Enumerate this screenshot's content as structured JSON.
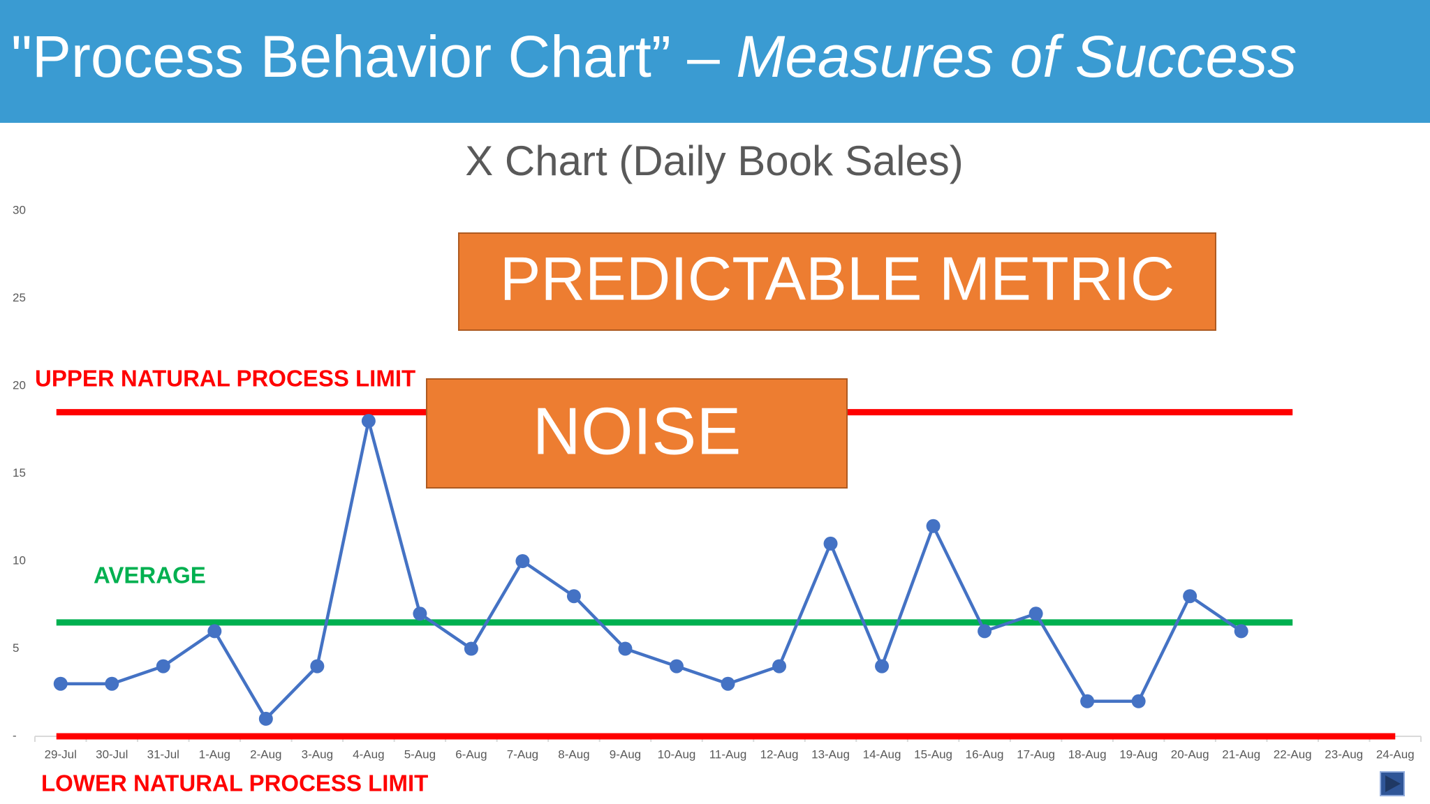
{
  "header": {
    "title": "\"Process Behavior Chart” – ",
    "title_italic": "Measures of Success"
  },
  "chart_data": {
    "type": "line",
    "title": "X Chart (Daily Book Sales)",
    "categories": [
      "29-Jul",
      "30-Jul",
      "31-Jul",
      "1-Aug",
      "2-Aug",
      "3-Aug",
      "4-Aug",
      "5-Aug",
      "6-Aug",
      "7-Aug",
      "8-Aug",
      "9-Aug",
      "10-Aug",
      "11-Aug",
      "12-Aug",
      "13-Aug",
      "14-Aug",
      "15-Aug",
      "16-Aug",
      "17-Aug",
      "18-Aug",
      "19-Aug",
      "20-Aug",
      "21-Aug",
      "22-Aug",
      "23-Aug",
      "24-Aug"
    ],
    "series": [
      {
        "name": "Daily Book Sales",
        "color": "#4472c4",
        "values": [
          3,
          3,
          4,
          6,
          1,
          4,
          18,
          7,
          5,
          10,
          8,
          5,
          4,
          3,
          4,
          11,
          4,
          12,
          6,
          7,
          2,
          2,
          8,
          6,
          null,
          null,
          null
        ]
      }
    ],
    "ylim": [
      0,
      30
    ],
    "yticks": [
      {
        "value": 0,
        "label": "-"
      },
      5,
      10,
      15,
      20,
      25,
      30
    ],
    "reference_lines": [
      {
        "label": "UPPER NATURAL PROCESS LIMIT",
        "value": 18.5,
        "color": "#ff0000"
      },
      {
        "label": "AVERAGE",
        "value": 6.5,
        "color": "#00b050"
      },
      {
        "label": "LOWER NATURAL PROCESS LIMIT",
        "value": 0,
        "color": "#ff0000"
      }
    ],
    "annotations": [
      "PREDICTABLE METRIC",
      "NOISE"
    ]
  }
}
